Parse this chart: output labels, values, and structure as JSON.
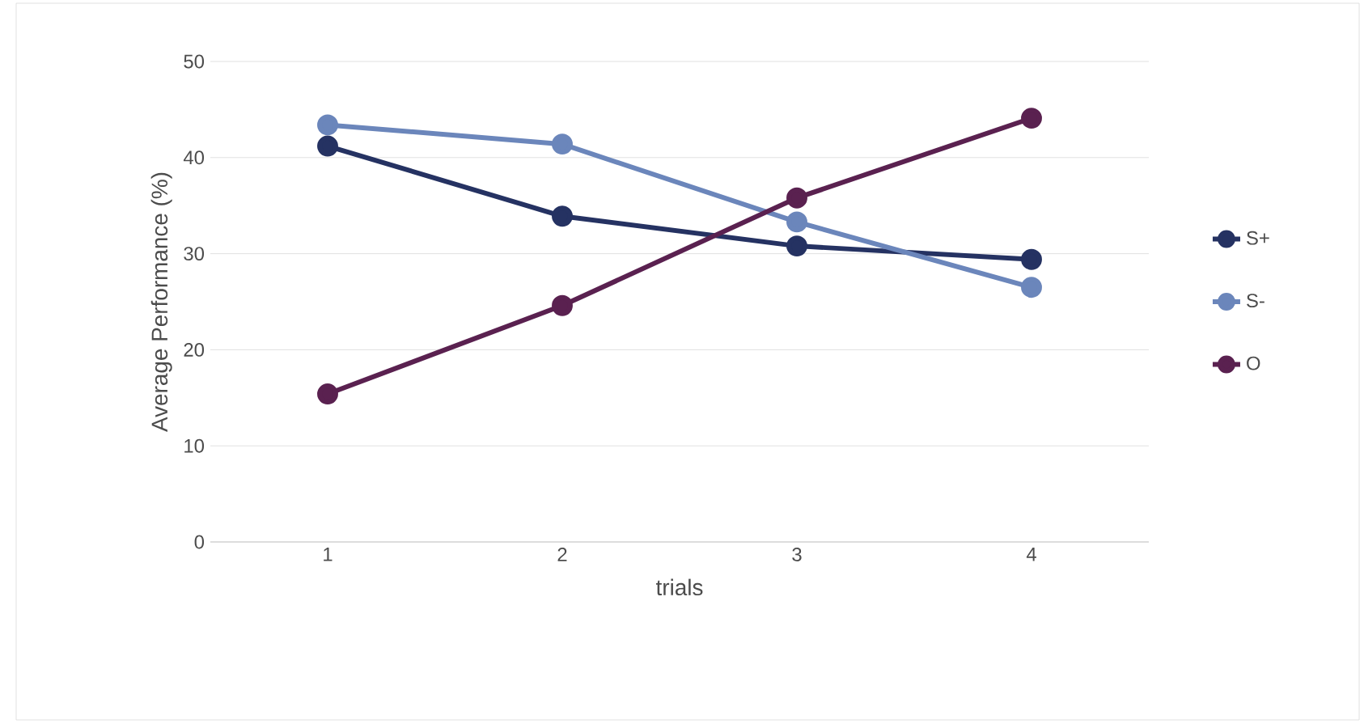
{
  "chart_data": {
    "type": "line",
    "xlabel": "trials",
    "ylabel": "Average Performance (%)",
    "categories": [
      "1",
      "2",
      "3",
      "4"
    ],
    "series": [
      {
        "name": "S+",
        "color": "#253262",
        "values": [
          41.2,
          33.9,
          30.8,
          29.4
        ]
      },
      {
        "name": "S-",
        "color": "#6b86bb",
        "values": [
          43.4,
          41.4,
          33.3,
          26.5
        ]
      },
      {
        "name": "O",
        "color": "#5a2150",
        "values": [
          15.4,
          24.6,
          35.8,
          44.1
        ]
      }
    ],
    "ylim": [
      0,
      50
    ],
    "yticks": [
      0,
      10,
      20,
      30,
      40,
      50
    ],
    "grid": "y",
    "legend": "right",
    "marker": "circle",
    "line_style": "solid"
  }
}
